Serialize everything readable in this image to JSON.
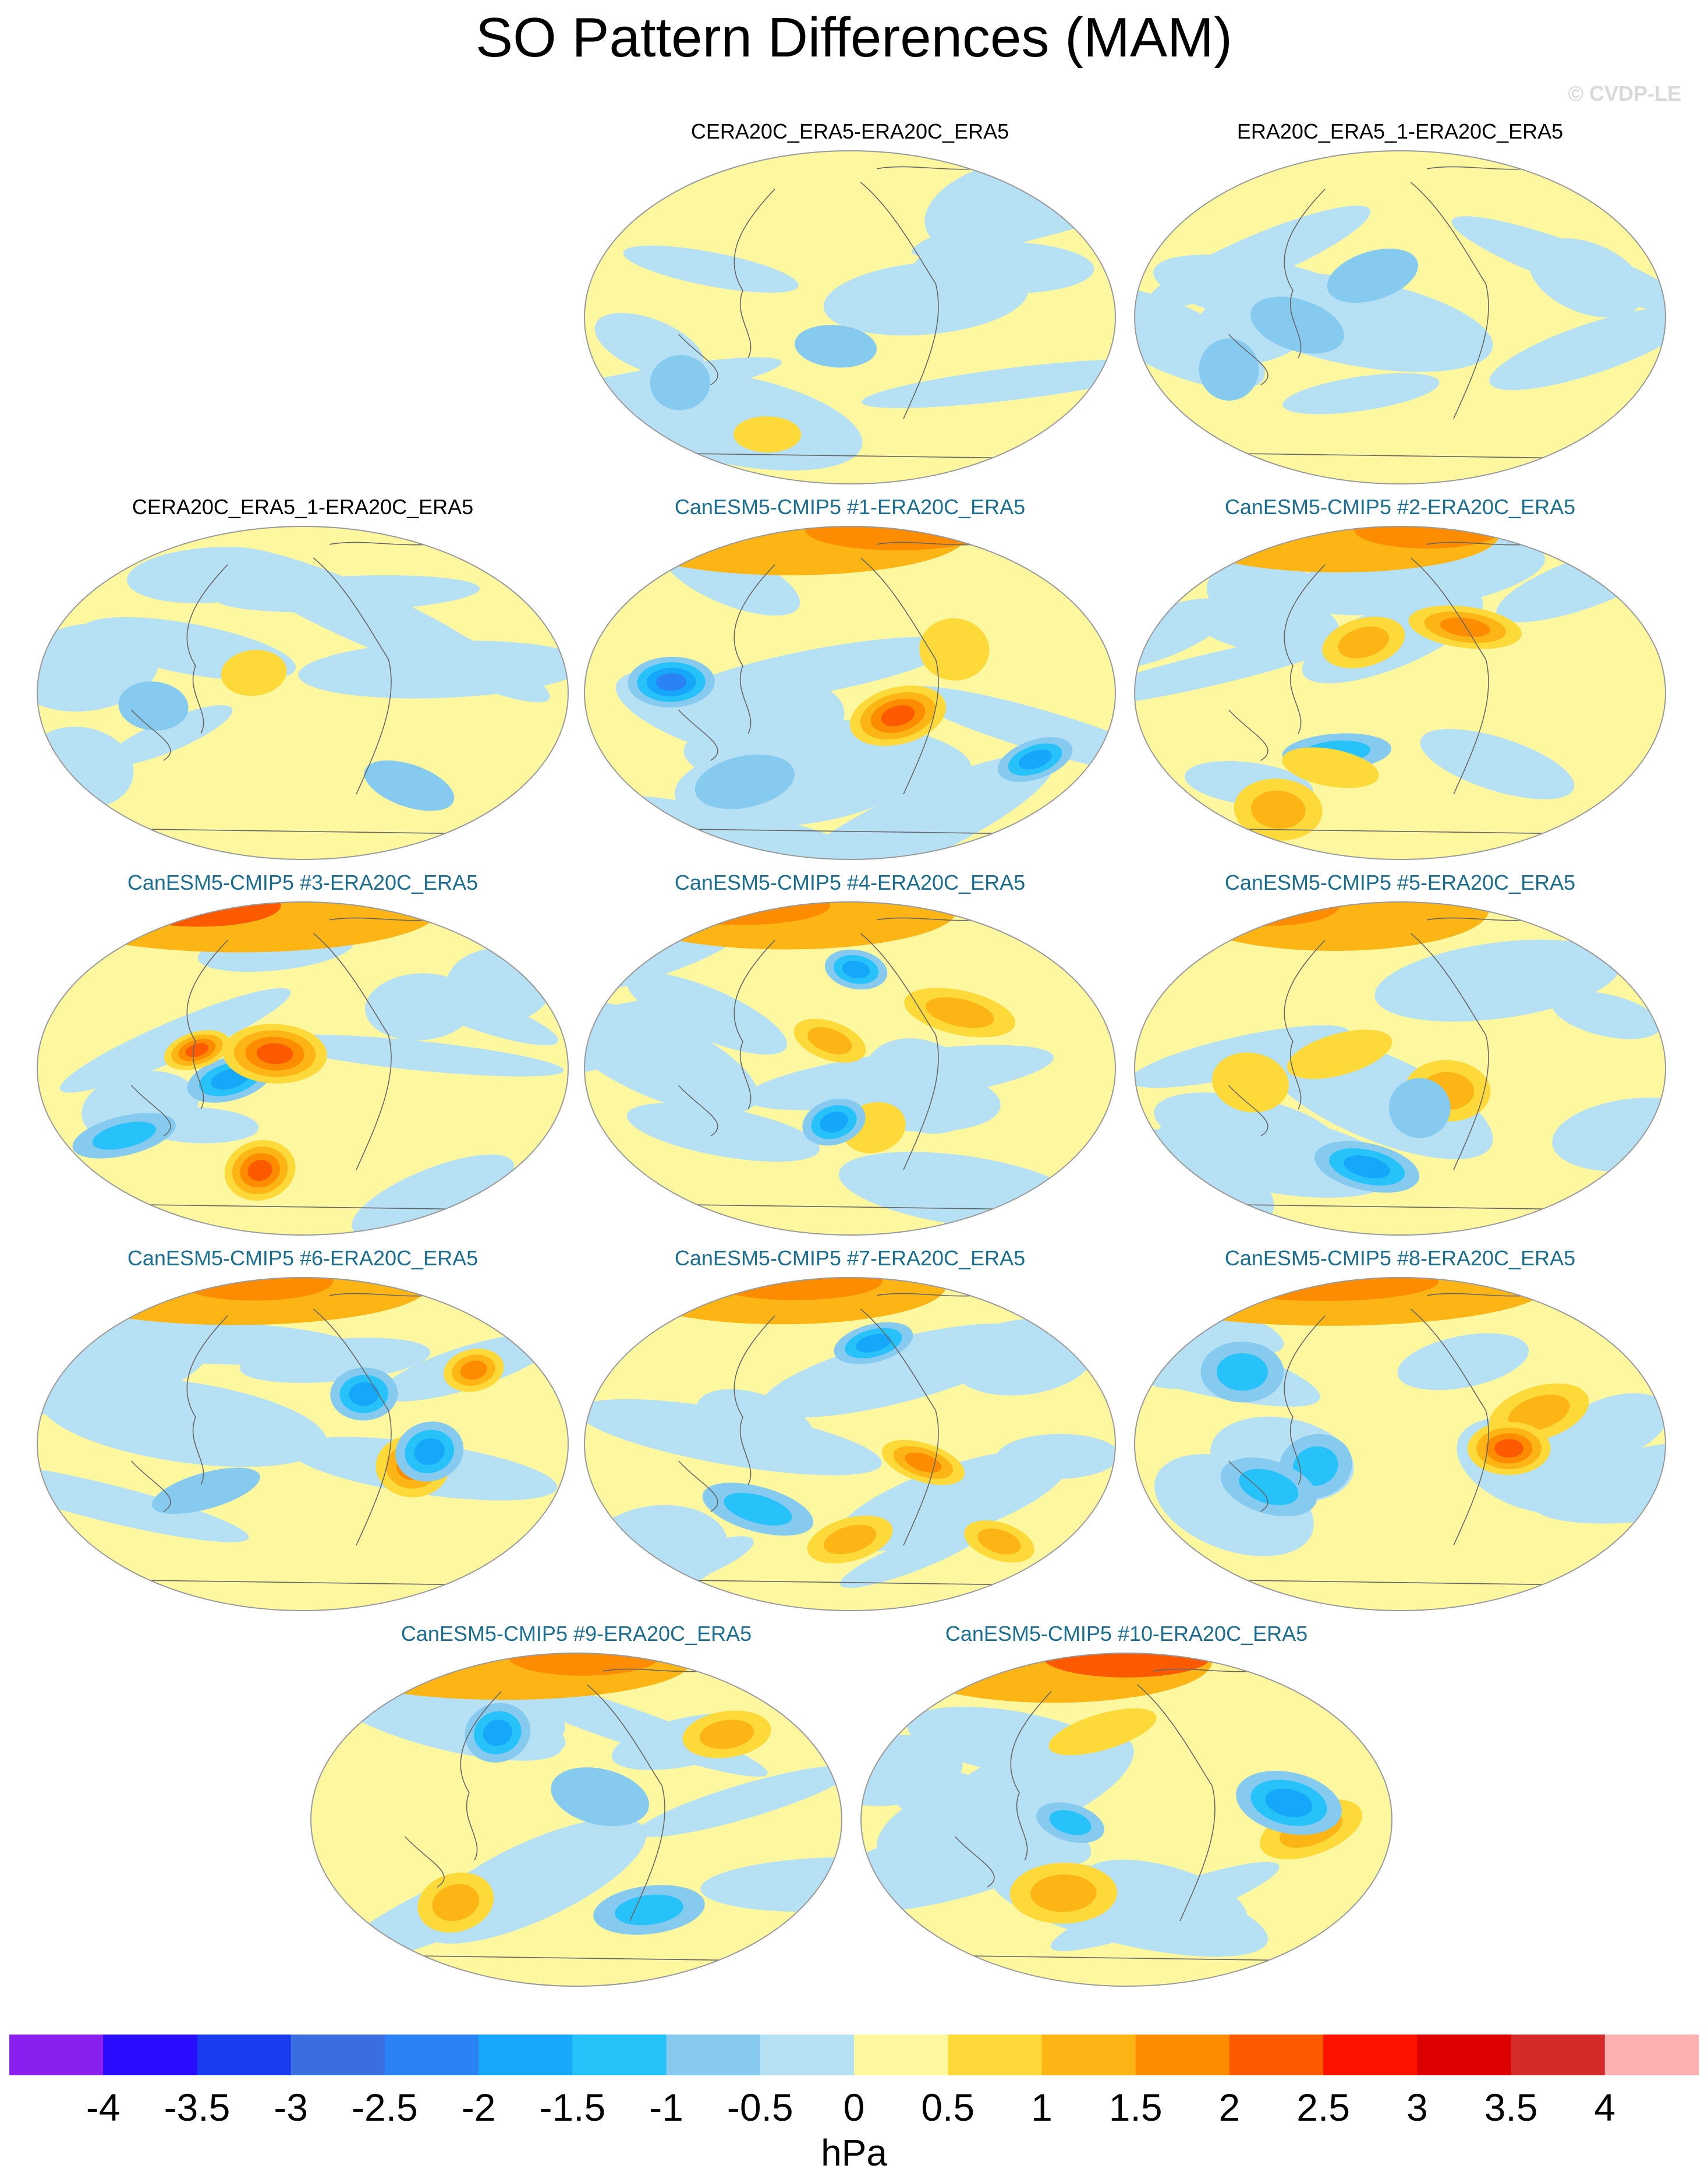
{
  "title": "SO Pattern Differences (MAM)",
  "copyright": "© CVDP-LE",
  "panels": [
    {
      "label": "CERA20C_ERA5-ERA20C_ERA5",
      "kind": "obs",
      "seed": 11,
      "amp": 0.35
    },
    {
      "label": "ERA20C_ERA5_1-ERA20C_ERA5",
      "kind": "obs",
      "seed": 23,
      "amp": 0.45
    },
    {
      "label": "CERA20C_ERA5_1-ERA20C_ERA5",
      "kind": "obs",
      "seed": 37,
      "amp": 0.45
    },
    {
      "label": "CanESM5-CMIP5 #1-ERA20C_ERA5",
      "kind": "model",
      "seed": 41,
      "amp": 1.0
    },
    {
      "label": "CanESM5-CMIP5 #2-ERA20C_ERA5",
      "kind": "model",
      "seed": 53,
      "amp": 0.8
    },
    {
      "label": "CanESM5-CMIP5 #3-ERA20C_ERA5",
      "kind": "model",
      "seed": 67,
      "amp": 1.1
    },
    {
      "label": "CanESM5-CMIP5 #4-ERA20C_ERA5",
      "kind": "model",
      "seed": 71,
      "amp": 0.9
    },
    {
      "label": "CanESM5-CMIP5 #5-ERA20C_ERA5",
      "kind": "model",
      "seed": 83,
      "amp": 1.0
    },
    {
      "label": "CanESM5-CMIP5 #6-ERA20C_ERA5",
      "kind": "model",
      "seed": 97,
      "amp": 0.9
    },
    {
      "label": "CanESM5-CMIP5 #7-ERA20C_ERA5",
      "kind": "model",
      "seed": 101,
      "amp": 0.85
    },
    {
      "label": "CanESM5-CMIP5 #8-ERA20C_ERA5",
      "kind": "model",
      "seed": 113,
      "amp": 0.95
    },
    {
      "label": "CanESM5-CMIP5 #9-ERA20C_ERA5",
      "kind": "model",
      "seed": 127,
      "amp": 0.85
    },
    {
      "label": "CanESM5-CMIP5 #10-ERA20C_ERA5",
      "kind": "model",
      "seed": 131,
      "amp": 1.05
    }
  ],
  "colorbar": {
    "colors": [
      "#8a20f0",
      "#2a0cff",
      "#1a3cf0",
      "#3a6ee0",
      "#2a82f5",
      "#16a6fa",
      "#28c2fa",
      "#86caef",
      "#b6e0f3",
      "#fdf8a0",
      "#fdd93a",
      "#fdb515",
      "#fd8c00",
      "#fd5a00",
      "#fd1200",
      "#dd0000",
      "#d52a2a",
      "#fdb0b0"
    ],
    "ticks": [
      "-4",
      "-3.5",
      "-3",
      "-2.5",
      "-2",
      "-1.5",
      "-1",
      "-0.5",
      "0",
      "0.5",
      "1",
      "1.5",
      "2",
      "2.5",
      "3",
      "3.5",
      "4"
    ],
    "units": "hPa"
  }
}
